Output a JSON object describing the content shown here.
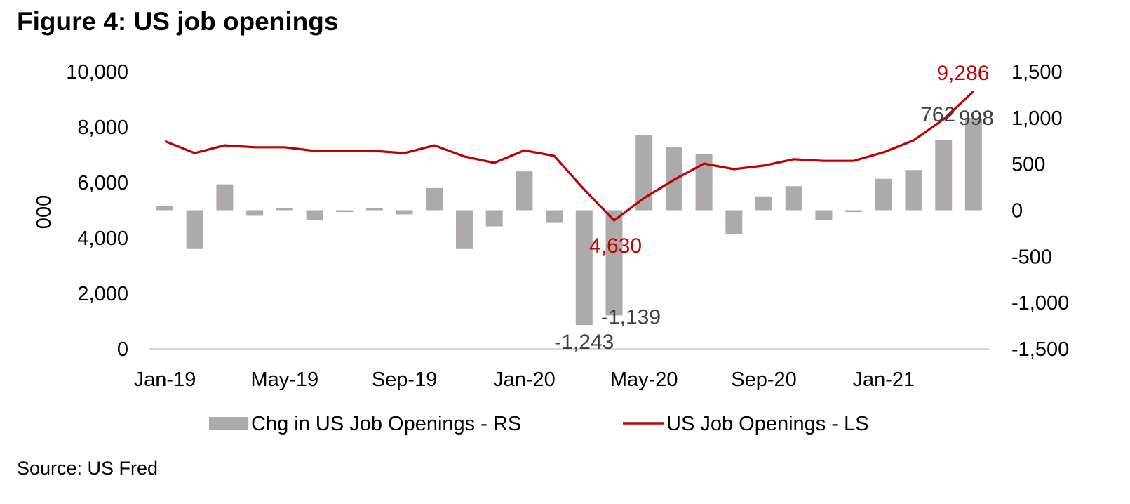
{
  "title": "Figure 4: US job openings",
  "source": "Source: US Fred",
  "colors": {
    "bar": "#aeaaaa",
    "line": "#c00000",
    "axis": "#d9d9d9",
    "bar_label": "#404040"
  },
  "chart_data": {
    "type": "bar+line",
    "title": "Figure 4: US job openings",
    "ylabel_left": "000",
    "ylabel_right": "",
    "xlabel": "",
    "ylim_left": [
      0,
      10000
    ],
    "ylim_right": [
      -1500,
      1500
    ],
    "yticks_left": [
      "0",
      "2,000",
      "4,000",
      "6,000",
      "8,000",
      "10,000"
    ],
    "yticks_left_values": [
      0,
      2000,
      4000,
      6000,
      8000,
      10000
    ],
    "yticks_right": [
      "-1,500",
      "-1,000",
      "-500",
      "0",
      "500",
      "1,000",
      "1,500"
    ],
    "yticks_right_values": [
      -1500,
      -1000,
      -500,
      0,
      500,
      1000,
      1500
    ],
    "x": [
      "Jan-19",
      "Feb-19",
      "Mar-19",
      "Apr-19",
      "May-19",
      "Jun-19",
      "Jul-19",
      "Aug-19",
      "Sep-19",
      "Oct-19",
      "Nov-19",
      "Dec-19",
      "Jan-20",
      "Feb-20",
      "Mar-20",
      "Apr-20",
      "May-20",
      "Jun-20",
      "Jul-20",
      "Aug-20",
      "Sep-20",
      "Oct-20",
      "Nov-20",
      "Dec-20",
      "Jan-21",
      "Feb-21",
      "Mar-21",
      "Apr-21"
    ],
    "xtick_labels": [
      "Jan-19",
      "May-19",
      "Sep-19",
      "Jan-20",
      "May-20",
      "Sep-20",
      "Jan-21"
    ],
    "xtick_indices": [
      0,
      4,
      8,
      12,
      16,
      20,
      24
    ],
    "grid": false,
    "legend_position": "bottom",
    "series": [
      {
        "name": "Chg in US Job Openings - RS",
        "type": "bar",
        "axis": "right",
        "values": [
          45,
          -420,
          280,
          -60,
          20,
          -110,
          -20,
          20,
          -45,
          240,
          -420,
          -175,
          420,
          -130,
          -1243,
          -1139,
          810,
          680,
          610,
          -260,
          150,
          260,
          -110,
          -20,
          340,
          435,
          762,
          998
        ]
      },
      {
        "name": "US Job Openings - LS",
        "type": "line",
        "axis": "left",
        "values": [
          7490,
          7060,
          7340,
          7270,
          7270,
          7140,
          7140,
          7140,
          7060,
          7340,
          6940,
          6710,
          7160,
          6960,
          5750,
          4630,
          5440,
          6100,
          6680,
          6480,
          6610,
          6840,
          6780,
          6780,
          7090,
          7520,
          8280,
          9286
        ]
      }
    ],
    "annotations": [
      {
        "series": "US Job Openings - LS",
        "index": 15,
        "text": "4,630"
      },
      {
        "series": "US Job Openings - LS",
        "index": 27,
        "text": "9,286"
      },
      {
        "series": "Chg in US Job Openings - RS",
        "index": 14,
        "text": "-1,243"
      },
      {
        "series": "Chg in US Job Openings - RS",
        "index": 15,
        "text": "-1,139"
      },
      {
        "series": "Chg in US Job Openings - RS",
        "index": 26,
        "text": "762"
      },
      {
        "series": "Chg in US Job Openings - RS",
        "index": 27,
        "text": "998"
      }
    ]
  }
}
